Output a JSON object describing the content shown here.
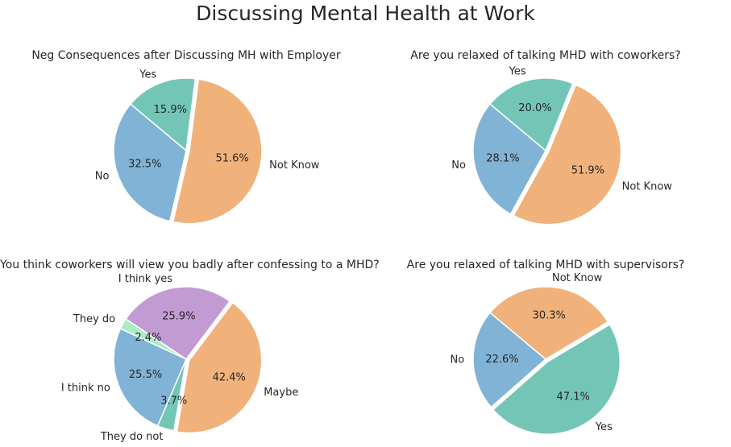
{
  "title": "Discussing Mental Health at Work",
  "colors": {
    "no": "#80b3d6",
    "not_know": "#f0b27a",
    "yes": "#73c6b6",
    "i_think_yes": "#c39bd3",
    "they_do": "#abebc6"
  },
  "chart_data": [
    {
      "type": "pie",
      "title": "Neg Consequences after Discussing MH with Employer",
      "slices": [
        {
          "label": "No",
          "value": 32.5,
          "pct_label": "32.5%",
          "color": "#80b3d6"
        },
        {
          "label": "Not Know",
          "value": 51.6,
          "pct_label": "51.6%",
          "color": "#f0b27a",
          "exploded": true
        },
        {
          "label": "Yes",
          "value": 15.9,
          "pct_label": "15.9%",
          "color": "#73c6b6"
        }
      ]
    },
    {
      "type": "pie",
      "title": "Are you relaxed of talking MHD with coworkers?",
      "slices": [
        {
          "label": "No",
          "value": 28.1,
          "pct_label": "28.1%",
          "color": "#80b3d6"
        },
        {
          "label": "Not Know",
          "value": 51.9,
          "pct_label": "51.9%",
          "color": "#f0b27a",
          "exploded": true
        },
        {
          "label": "Yes",
          "value": 20.0,
          "pct_label": "20.0%",
          "color": "#73c6b6"
        }
      ]
    },
    {
      "type": "pie",
      "title": "You think coworkers will view you badly after confessing to a MHD?",
      "slices": [
        {
          "label": "I think no",
          "value": 25.5,
          "pct_label": "25.5%",
          "color": "#80b3d6"
        },
        {
          "label": "They do not",
          "value": 3.7,
          "pct_label": "3.7%",
          "color": "#73c6b6"
        },
        {
          "label": "Maybe",
          "value": 42.4,
          "pct_label": "42.4%",
          "color": "#f0b27a",
          "exploded": true
        },
        {
          "label": "I think yes",
          "value": 25.9,
          "pct_label": "25.9%",
          "color": "#c39bd3"
        },
        {
          "label": "They do",
          "value": 2.4,
          "pct_label": "2.4%",
          "color": "#abebc6"
        }
      ]
    },
    {
      "type": "pie",
      "title": "Are you relaxed of talking MHD with supervisors?",
      "slices": [
        {
          "label": "No",
          "value": 22.6,
          "pct_label": "22.6%",
          "color": "#80b3d6"
        },
        {
          "label": "Yes",
          "value": 47.1,
          "pct_label": "47.1%",
          "color": "#73c6b6",
          "exploded": true
        },
        {
          "label": "Not Know",
          "value": 30.3,
          "pct_label": "30.3%",
          "color": "#f0b27a"
        }
      ]
    }
  ]
}
